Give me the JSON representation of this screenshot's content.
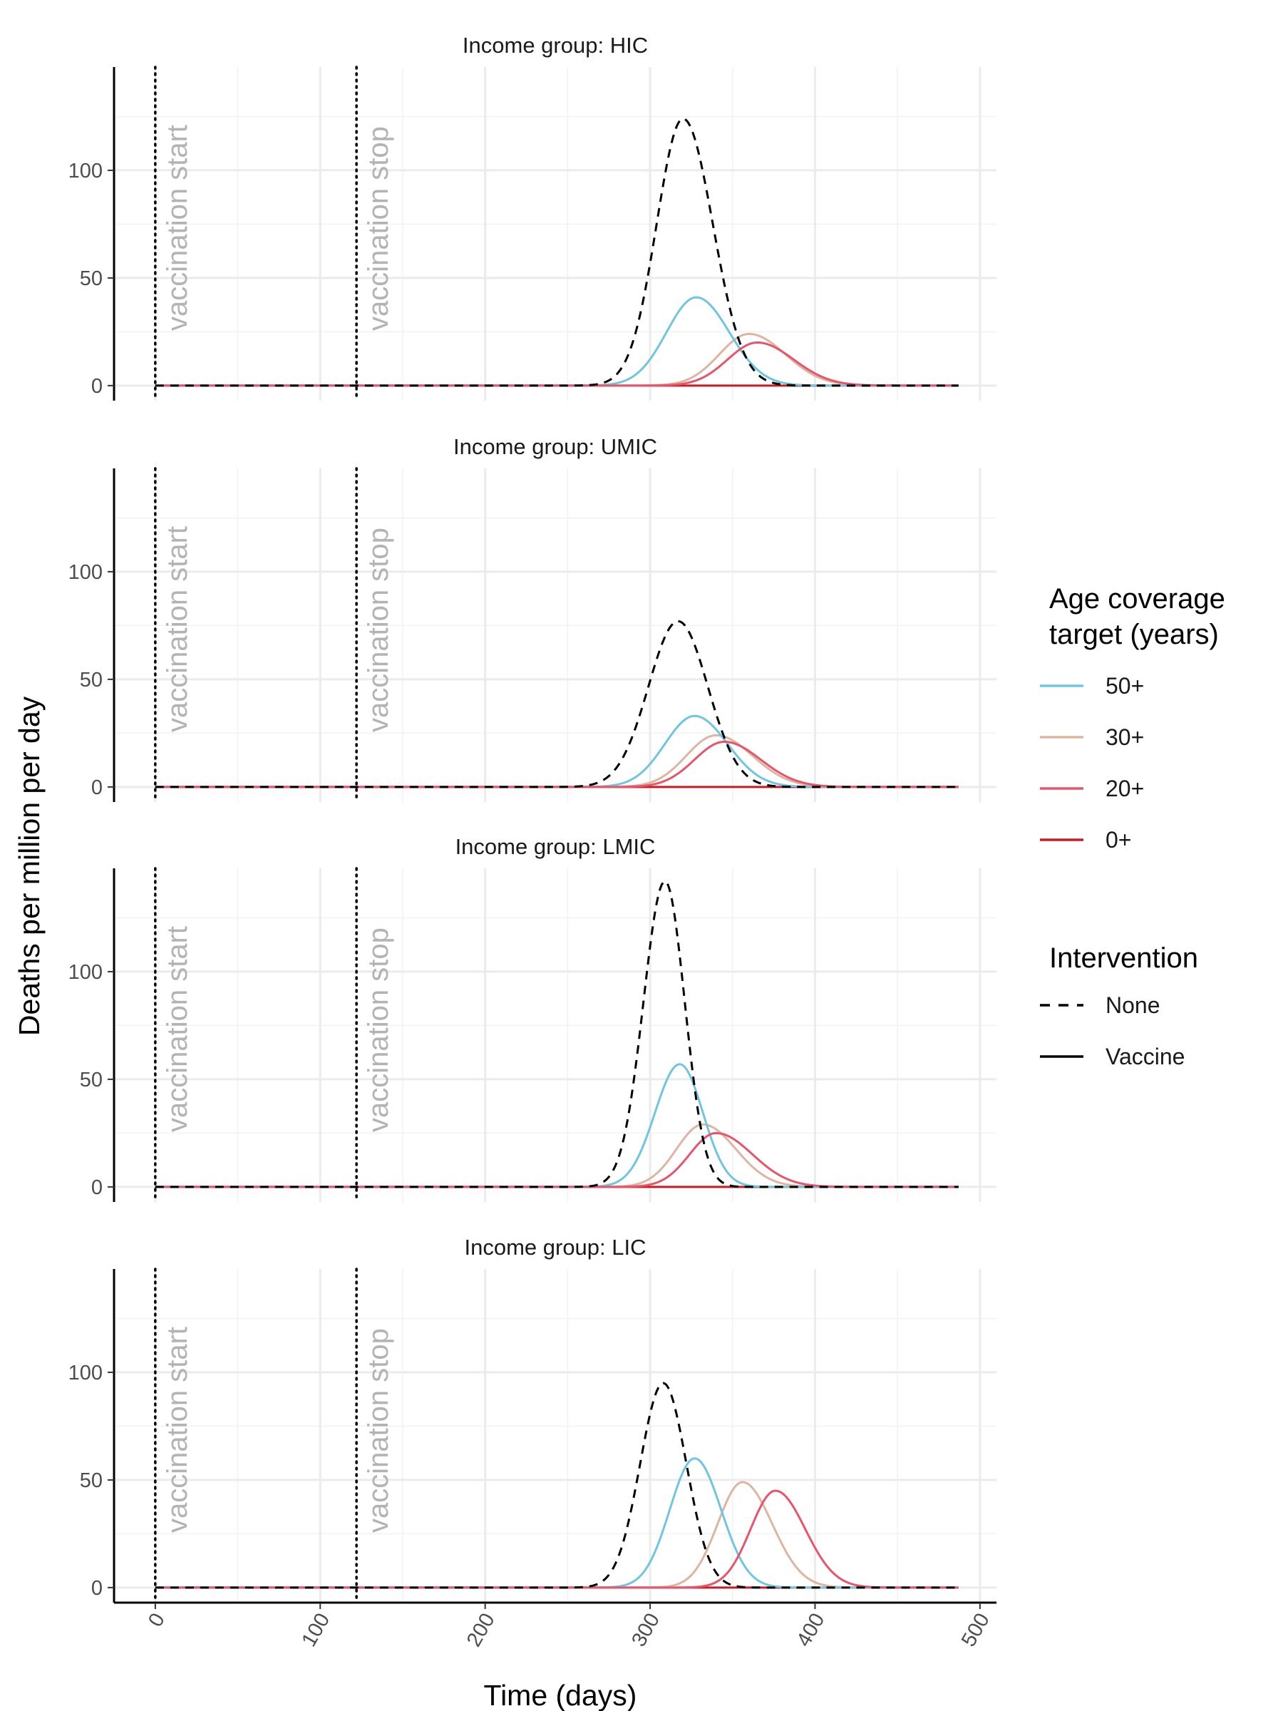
{
  "chart_data": {
    "type": "line",
    "xlabel": "Time (days)",
    "ylabel": "Deaths per million per day",
    "xlim": [
      -25,
      510
    ],
    "ylim": [
      -7,
      148
    ],
    "x_ticks": [
      0,
      100,
      200,
      300,
      400,
      500
    ],
    "y_ticks": [
      0,
      50,
      100
    ],
    "grid": true,
    "legend_position": "right",
    "legends": {
      "age": {
        "title_lines": [
          "Age coverage",
          "target (years)"
        ],
        "items": [
          {
            "label": "50+",
            "color": "#6ec6df"
          },
          {
            "label": "30+",
            "color": "#ddb5a1"
          },
          {
            "label": "20+",
            "color": "#e8546c"
          },
          {
            "label": "0+",
            "color": "#cc1a24"
          }
        ]
      },
      "intervention": {
        "title": "Intervention",
        "items": [
          {
            "label": "None",
            "dash": "dashed"
          },
          {
            "label": "Vaccine",
            "dash": "solid"
          }
        ]
      }
    },
    "vlines": [
      {
        "x": 0,
        "label": "vaccination start"
      },
      {
        "x": 122,
        "label": "vaccination stop"
      }
    ],
    "x_end": 487,
    "panels": [
      {
        "title": "Income group: HIC",
        "series": [
          {
            "age": "none",
            "intervention": "None",
            "color": "#000000",
            "baseline": 0,
            "peak": 124,
            "peak_x": 320,
            "sigma_left": 16,
            "sigma_right": 18
          },
          {
            "age": "50+",
            "intervention": "Vaccine",
            "color": "#6ec6df",
            "baseline": 0,
            "peak": 41,
            "peak_x": 328,
            "sigma_left": 18,
            "sigma_right": 20
          },
          {
            "age": "30+",
            "intervention": "Vaccine",
            "color": "#ddb5a1",
            "baseline": 0,
            "peak": 24,
            "peak_x": 360,
            "sigma_left": 18,
            "sigma_right": 22
          },
          {
            "age": "20+",
            "intervention": "Vaccine",
            "color": "#e8546c",
            "baseline": 0,
            "peak": 20,
            "peak_x": 365,
            "sigma_left": 18,
            "sigma_right": 22
          },
          {
            "age": "0+",
            "intervention": "Vaccine",
            "color": "#cc1a24",
            "baseline": 0,
            "peak": 0,
            "peak_x": 300,
            "sigma_left": 20,
            "sigma_right": 20
          }
        ]
      },
      {
        "title": "Income group: UMIC",
        "series": [
          {
            "age": "none",
            "intervention": "None",
            "color": "#000000",
            "baseline": 0,
            "peak": 77,
            "peak_x": 317,
            "sigma_left": 18,
            "sigma_right": 18
          },
          {
            "age": "50+",
            "intervention": "Vaccine",
            "color": "#6ec6df",
            "baseline": 0,
            "peak": 33,
            "peak_x": 327,
            "sigma_left": 18,
            "sigma_right": 20
          },
          {
            "age": "30+",
            "intervention": "Vaccine",
            "color": "#ddb5a1",
            "baseline": 0,
            "peak": 24,
            "peak_x": 340,
            "sigma_left": 18,
            "sigma_right": 22
          },
          {
            "age": "20+",
            "intervention": "Vaccine",
            "color": "#e8546c",
            "baseline": 0,
            "peak": 21,
            "peak_x": 345,
            "sigma_left": 18,
            "sigma_right": 22
          },
          {
            "age": "0+",
            "intervention": "Vaccine",
            "color": "#cc1a24",
            "baseline": 0,
            "peak": 0,
            "peak_x": 300,
            "sigma_left": 20,
            "sigma_right": 20
          }
        ]
      },
      {
        "title": "Income group: LMIC",
        "series": [
          {
            "age": "none",
            "intervention": "None",
            "color": "#000000",
            "baseline": 0,
            "peak": 142,
            "peak_x": 309,
            "sigma_left": 13,
            "sigma_right": 12
          },
          {
            "age": "50+",
            "intervention": "Vaccine",
            "color": "#6ec6df",
            "baseline": 0,
            "peak": 57,
            "peak_x": 318,
            "sigma_left": 15,
            "sigma_right": 14
          },
          {
            "age": "30+",
            "intervention": "Vaccine",
            "color": "#ddb5a1",
            "baseline": 0,
            "peak": 29,
            "peak_x": 332,
            "sigma_left": 16,
            "sigma_right": 20
          },
          {
            "age": "20+",
            "intervention": "Vaccine",
            "color": "#e8546c",
            "baseline": 0,
            "peak": 25,
            "peak_x": 340,
            "sigma_left": 16,
            "sigma_right": 22
          },
          {
            "age": "0+",
            "intervention": "Vaccine",
            "color": "#cc1a24",
            "baseline": 0,
            "peak": 0,
            "peak_x": 300,
            "sigma_left": 20,
            "sigma_right": 20
          }
        ]
      },
      {
        "title": "Income group: LIC",
        "series": [
          {
            "age": "none",
            "intervention": "None",
            "color": "#000000",
            "baseline": 0,
            "peak": 95,
            "peak_x": 308,
            "sigma_left": 14,
            "sigma_right": 14
          },
          {
            "age": "50+",
            "intervention": "Vaccine",
            "color": "#6ec6df",
            "baseline": 0,
            "peak": 60,
            "peak_x": 327,
            "sigma_left": 15,
            "sigma_right": 16
          },
          {
            "age": "30+",
            "intervention": "Vaccine",
            "color": "#ddb5a1",
            "baseline": 0,
            "peak": 49,
            "peak_x": 356,
            "sigma_left": 15,
            "sigma_right": 18
          },
          {
            "age": "20+",
            "intervention": "Vaccine",
            "color": "#e8546c",
            "baseline": 0,
            "peak": 45,
            "peak_x": 376,
            "sigma_left": 15,
            "sigma_right": 18
          },
          {
            "age": "0+",
            "intervention": "Vaccine",
            "color": "#cc1a24",
            "baseline": 0,
            "peak": 0,
            "peak_x": 300,
            "sigma_left": 20,
            "sigma_right": 20
          }
        ]
      }
    ]
  }
}
